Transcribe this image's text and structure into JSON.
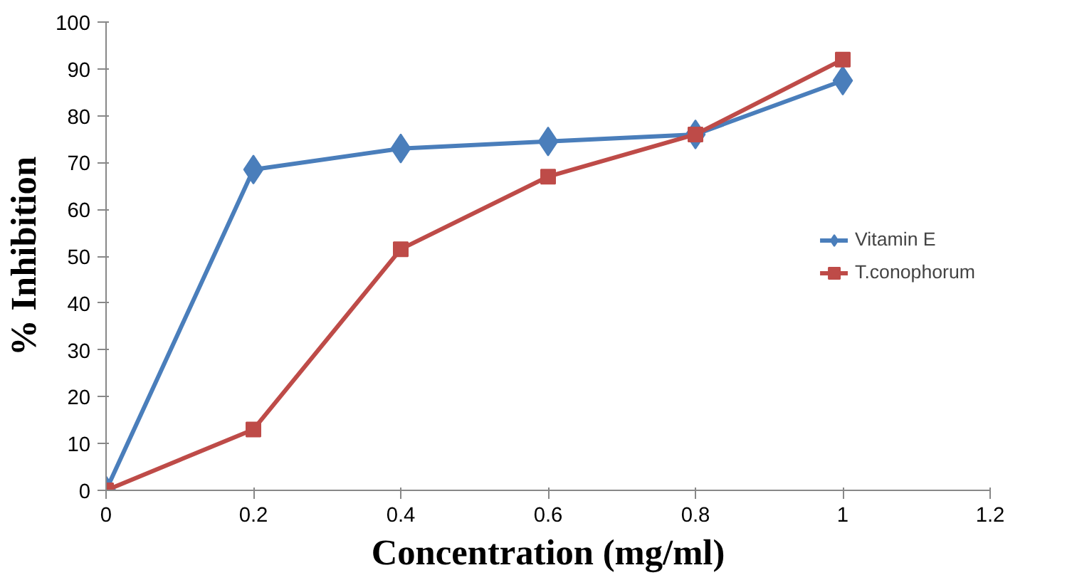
{
  "chart_data": {
    "type": "line",
    "xlabel": "Concentration (mg/ml)",
    "ylabel": "% Inhibition",
    "x": [
      0,
      0.2,
      0.4,
      0.6,
      0.8,
      1
    ],
    "series": [
      {
        "name": "Vitamin E",
        "color": "#4a7ebb",
        "marker": "diamond",
        "values": [
          0,
          68.5,
          73,
          74.5,
          76,
          87.5
        ]
      },
      {
        "name": "T.conophorum",
        "color": "#be4b48",
        "marker": "square",
        "values": [
          0,
          13,
          51.5,
          67,
          76,
          92
        ]
      }
    ],
    "xlim": [
      0,
      1.2
    ],
    "ylim": [
      0,
      100
    ],
    "xticks": [
      0,
      {
        "value": 0.2,
        "label": "0.2"
      },
      {
        "value": 0.4,
        "label": "0.4"
      },
      {
        "value": 0.6,
        "label": "0.6"
      },
      {
        "value": 0.8,
        "label": "0.8"
      },
      1,
      {
        "value": 1.2,
        "label": "1.2"
      }
    ],
    "yticks": [
      0,
      10,
      20,
      30,
      40,
      50,
      60,
      70,
      80,
      90,
      100
    ],
    "grid": false,
    "legend": "right",
    "line_style": "solid"
  }
}
